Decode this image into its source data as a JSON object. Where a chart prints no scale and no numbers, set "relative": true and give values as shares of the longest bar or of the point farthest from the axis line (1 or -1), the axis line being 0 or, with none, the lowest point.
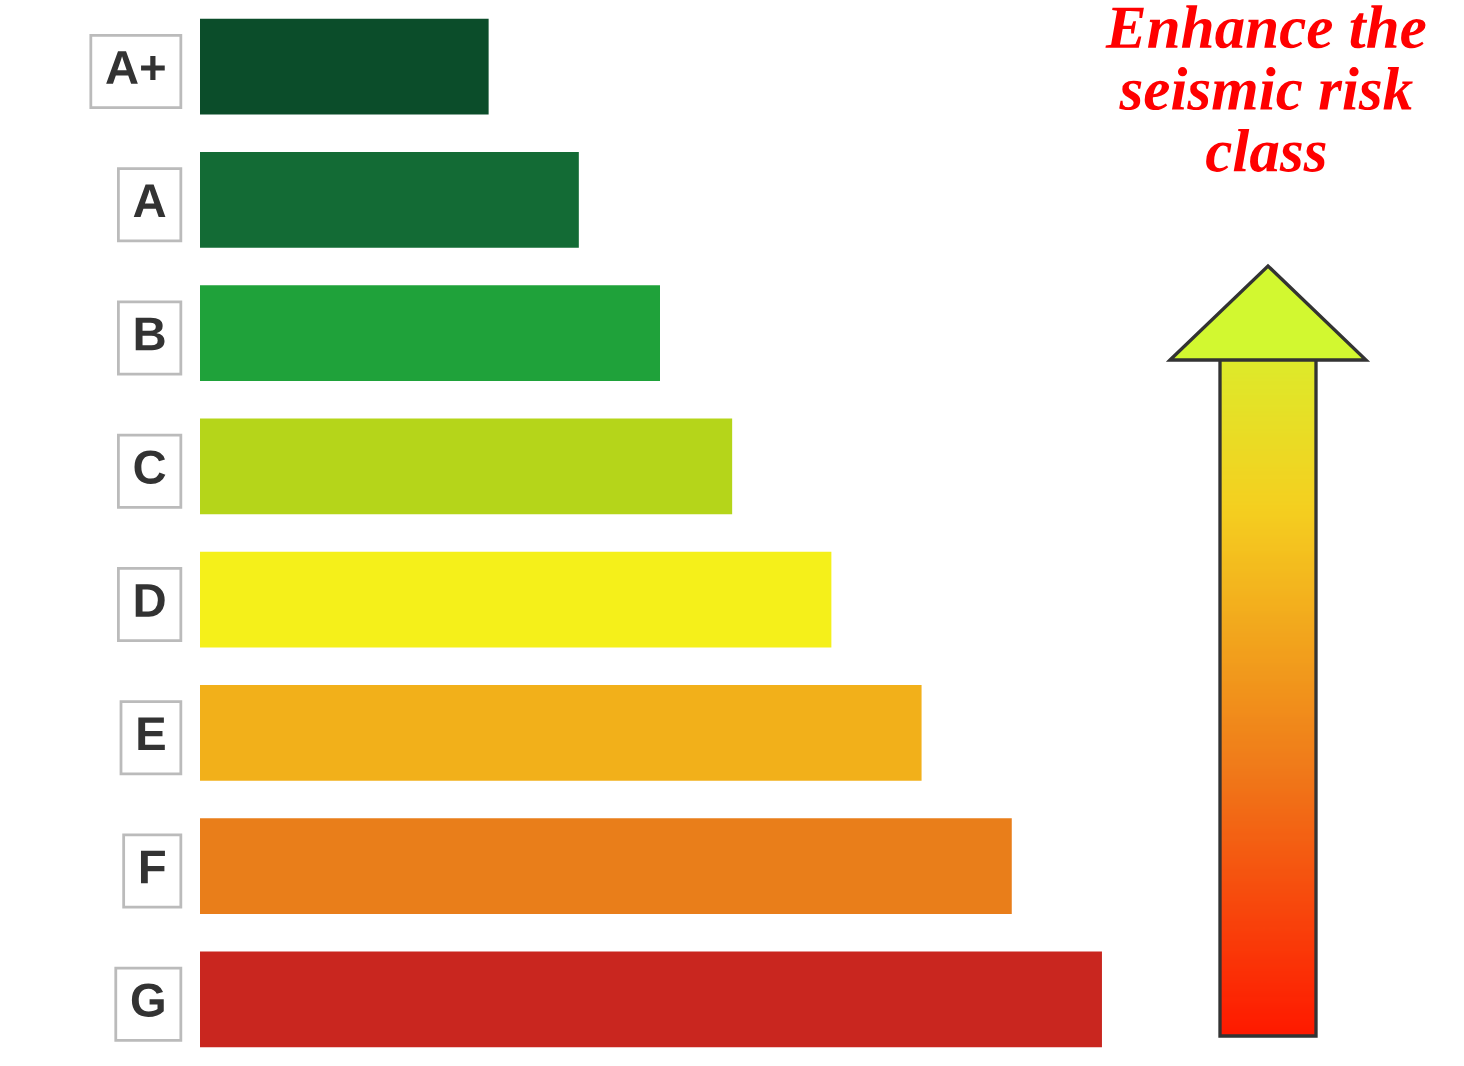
{
  "chart_data": {
    "type": "bar",
    "orientation": "horizontal",
    "relative": true,
    "categories": [
      "A+",
      "A",
      "B",
      "C",
      "D",
      "E",
      "F",
      "G"
    ],
    "values": [
      0.32,
      0.42,
      0.51,
      0.59,
      0.7,
      0.8,
      0.9,
      1.0
    ],
    "colors": [
      "#0b4d2a",
      "#136b35",
      "#1fa23a",
      "#b5d51a",
      "#f5f01a",
      "#f2b01a",
      "#e97e1a",
      "#c9261f"
    ],
    "annotations": [
      "Enhance the seismic risk class"
    ],
    "grid": false,
    "legend": false
  }
}
